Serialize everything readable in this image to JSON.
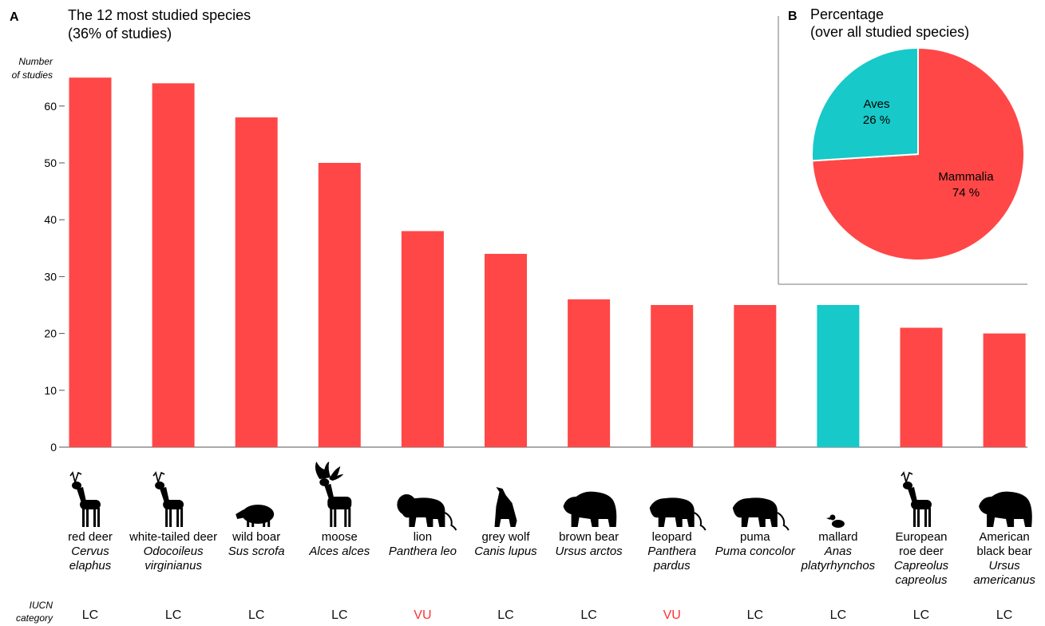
{
  "panel_a": {
    "letter": "A",
    "title_line1": "The 12 most studied species",
    "title_line2": "(36% of studies)",
    "ylabel_line1": "Number",
    "ylabel_line2": "of studies",
    "iucn_label_line1": "IUCN",
    "iucn_label_line2": "category"
  },
  "panel_b": {
    "letter": "B",
    "title_line1": "Percentage",
    "title_line2": "(over all studied species)"
  },
  "colors": {
    "mammal": "#ff4747",
    "bird": "#17c9c9",
    "vulnerable_text": "#ff3030",
    "default_text": "#111111",
    "axis": "#555555"
  },
  "chart_data": [
    {
      "type": "bar",
      "title": "The 12 most studied species",
      "ylabel": "Number of studies",
      "ylim": [
        0,
        65
      ],
      "yticks": [
        0,
        10,
        20,
        30,
        40,
        50,
        60
      ],
      "grid": false,
      "categories": [
        {
          "common": [
            "red deer"
          ],
          "latin": [
            "Cervus",
            "elaphus"
          ],
          "value": 65,
          "class": "mammal",
          "iucn": "LC",
          "icon": "deer-icon"
        },
        {
          "common": [
            "white-tailed deer"
          ],
          "latin": [
            "Odocoileus",
            "virginianus"
          ],
          "value": 64,
          "class": "mammal",
          "iucn": "LC",
          "icon": "deer-icon"
        },
        {
          "common": [
            "wild boar"
          ],
          "latin": [
            "Sus scrofa"
          ],
          "value": 58,
          "class": "mammal",
          "iucn": "LC",
          "icon": "boar-icon"
        },
        {
          "common": [
            "moose"
          ],
          "latin": [
            "Alces alces"
          ],
          "value": 50,
          "class": "mammal",
          "iucn": "LC",
          "icon": "moose-icon"
        },
        {
          "common": [
            "lion"
          ],
          "latin": [
            "Panthera leo"
          ],
          "value": 38,
          "class": "mammal",
          "iucn": "VU",
          "icon": "lion-icon"
        },
        {
          "common": [
            "grey wolf"
          ],
          "latin": [
            "Canis lupus"
          ],
          "value": 34,
          "class": "mammal",
          "iucn": "LC",
          "icon": "wolf-icon"
        },
        {
          "common": [
            "brown bear"
          ],
          "latin": [
            "Ursus arctos"
          ],
          "value": 26,
          "class": "mammal",
          "iucn": "LC",
          "icon": "bear-icon"
        },
        {
          "common": [
            "leopard"
          ],
          "latin": [
            "Panthera",
            "pardus"
          ],
          "value": 25,
          "class": "mammal",
          "iucn": "VU",
          "icon": "cat-icon"
        },
        {
          "common": [
            "puma"
          ],
          "latin": [
            "Puma concolor"
          ],
          "value": 25,
          "class": "mammal",
          "iucn": "LC",
          "icon": "cat-icon"
        },
        {
          "common": [
            "mallard"
          ],
          "latin": [
            "Anas",
            "platyrhynchos"
          ],
          "value": 25,
          "class": "bird",
          "iucn": "LC",
          "icon": "duck-icon"
        },
        {
          "common": [
            "European",
            "roe deer"
          ],
          "latin": [
            "Capreolus",
            "capreolus"
          ],
          "value": 21,
          "class": "mammal",
          "iucn": "LC",
          "icon": "deer-icon"
        },
        {
          "common": [
            "American",
            "black bear"
          ],
          "latin": [
            "Ursus",
            "americanus"
          ],
          "value": 20,
          "class": "mammal",
          "iucn": "LC",
          "icon": "bear-icon"
        }
      ]
    },
    {
      "type": "pie",
      "title": "Percentage (over all studied species)",
      "slices": [
        {
          "label": "Mammalia",
          "value": 74,
          "text": "74 %",
          "class": "mammal"
        },
        {
          "label": "Aves",
          "value": 26,
          "text": "26 %",
          "class": "bird"
        }
      ]
    }
  ]
}
